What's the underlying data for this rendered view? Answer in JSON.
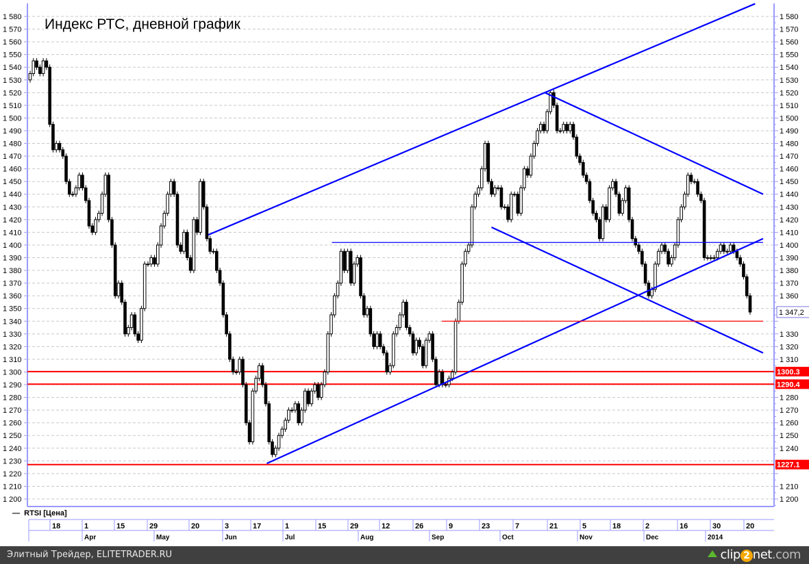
{
  "chart_data": {
    "type": "candlestick",
    "title": "Индекс РТС, дневной график",
    "legend": "RTSI [Цена]",
    "ylim": [
      1195,
      1590
    ],
    "yticks": [
      1200,
      1210,
      1220,
      1230,
      1240,
      1250,
      1260,
      1270,
      1280,
      1290,
      1300,
      1310,
      1320,
      1330,
      1340,
      1350,
      1360,
      1370,
      1380,
      1390,
      1400,
      1410,
      1420,
      1430,
      1440,
      1450,
      1460,
      1470,
      1480,
      1490,
      1500,
      1510,
      1520,
      1530,
      1540,
      1550,
      1560,
      1570,
      1580
    ],
    "grid": true,
    "x_day_ticks": [
      "18",
      "1",
      "15",
      "29",
      "20",
      "3",
      "17",
      "1",
      "15",
      "29",
      "12",
      "26",
      "9",
      "23",
      "7",
      "21",
      "5",
      "18",
      "2",
      "16",
      "30",
      "20"
    ],
    "x_month_ticks": [
      "Apr",
      "May",
      "Jun",
      "Jul",
      "Aug",
      "Sep",
      "Oct",
      "Nov",
      "Dec",
      "2014"
    ],
    "close": [
      1535,
      1545,
      1540,
      1535,
      1545,
      1540,
      1495,
      1475,
      1480,
      1475,
      1470,
      1450,
      1440,
      1440,
      1445,
      1455,
      1445,
      1435,
      1415,
      1410,
      1420,
      1425,
      1440,
      1455,
      1420,
      1400,
      1360,
      1370,
      1355,
      1330,
      1335,
      1345,
      1330,
      1325,
      1350,
      1385,
      1385,
      1390,
      1385,
      1400,
      1415,
      1425,
      1440,
      1450,
      1440,
      1400,
      1395,
      1410,
      1390,
      1380,
      1420,
      1410,
      1450,
      1430,
      1405,
      1395,
      1395,
      1380,
      1370,
      1345,
      1330,
      1310,
      1300,
      1300,
      1310,
      1290,
      1260,
      1245,
      1285,
      1295,
      1305,
      1290,
      1275,
      1245,
      1235,
      1240,
      1250,
      1255,
      1262,
      1270,
      1270,
      1275,
      1260,
      1270,
      1285,
      1275,
      1285,
      1290,
      1280,
      1290,
      1300,
      1330,
      1345,
      1360,
      1370,
      1395,
      1380,
      1395,
      1370,
      1385,
      1390,
      1360,
      1345,
      1350,
      1330,
      1320,
      1330,
      1320,
      1315,
      1300,
      1305,
      1330,
      1335,
      1345,
      1355,
      1335,
      1330,
      1315,
      1325,
      1320,
      1305,
      1325,
      1330,
      1310,
      1290,
      1300,
      1290,
      1290,
      1295,
      1300,
      1340,
      1355,
      1385,
      1395,
      1400,
      1430,
      1440,
      1445,
      1460,
      1480,
      1450,
      1440,
      1445,
      1445,
      1430,
      1430,
      1420,
      1440,
      1440,
      1425,
      1445,
      1460,
      1455,
      1470,
      1480,
      1490,
      1495,
      1490,
      1505,
      1520,
      1510,
      1490,
      1490,
      1495,
      1490,
      1495,
      1485,
      1470,
      1465,
      1455,
      1450,
      1435,
      1425,
      1420,
      1405,
      1430,
      1420,
      1445,
      1450,
      1440,
      1425,
      1435,
      1445,
      1420,
      1405,
      1400,
      1395,
      1385,
      1370,
      1360,
      1365,
      1385,
      1395,
      1400,
      1395,
      1385,
      1390,
      1400,
      1420,
      1430,
      1440,
      1455,
      1450,
      1450,
      1440,
      1435,
      1390,
      1390,
      1390,
      1390,
      1395,
      1400,
      1395,
      1395,
      1400,
      1395,
      1390,
      1385,
      1375,
      1360,
      1347.2
    ],
    "last_price_label": "1 347,2",
    "horizontal_levels": [
      {
        "value": 1300.3,
        "label": "1300.3",
        "color": "#ff0000"
      },
      {
        "value": 1290.4,
        "label": "1290.4",
        "color": "#ff0000"
      },
      {
        "value": 1227.1,
        "label": "1227.1",
        "color": "#ff0000"
      }
    ],
    "trend_lines": [
      {
        "from": [
          "2013-05-28",
          1408
        ],
        "to": [
          "2014-01-27",
          1590
        ],
        "color": "#0000ff"
      },
      {
        "from": [
          "2013-06-24",
          1228
        ],
        "to": [
          "2014-02-01",
          1405
        ],
        "color": "#0000ff"
      },
      {
        "from": [
          "2013-10-20",
          1520
        ],
        "to": [
          "2014-02-01",
          1440
        ],
        "color": "#0000ff"
      },
      {
        "from": [
          "2013-09-28",
          1414
        ],
        "to": [
          "2014-02-01",
          1315
        ],
        "color": "#0000ff"
      },
      {
        "from": [
          "2013-07-22",
          1402
        ],
        "to": [
          "2014-02-01",
          1402
        ],
        "color": "#0000ff",
        "thin": true
      },
      {
        "from": [
          "2013-09-07",
          1340
        ],
        "to": [
          "2014-02-01",
          1340
        ],
        "color": "#ff0000",
        "thin": true
      }
    ]
  },
  "footer": {
    "left_text": "Элитный Трейдер, ELITETRADER.RU",
    "logo_text": "clip2net.com"
  }
}
